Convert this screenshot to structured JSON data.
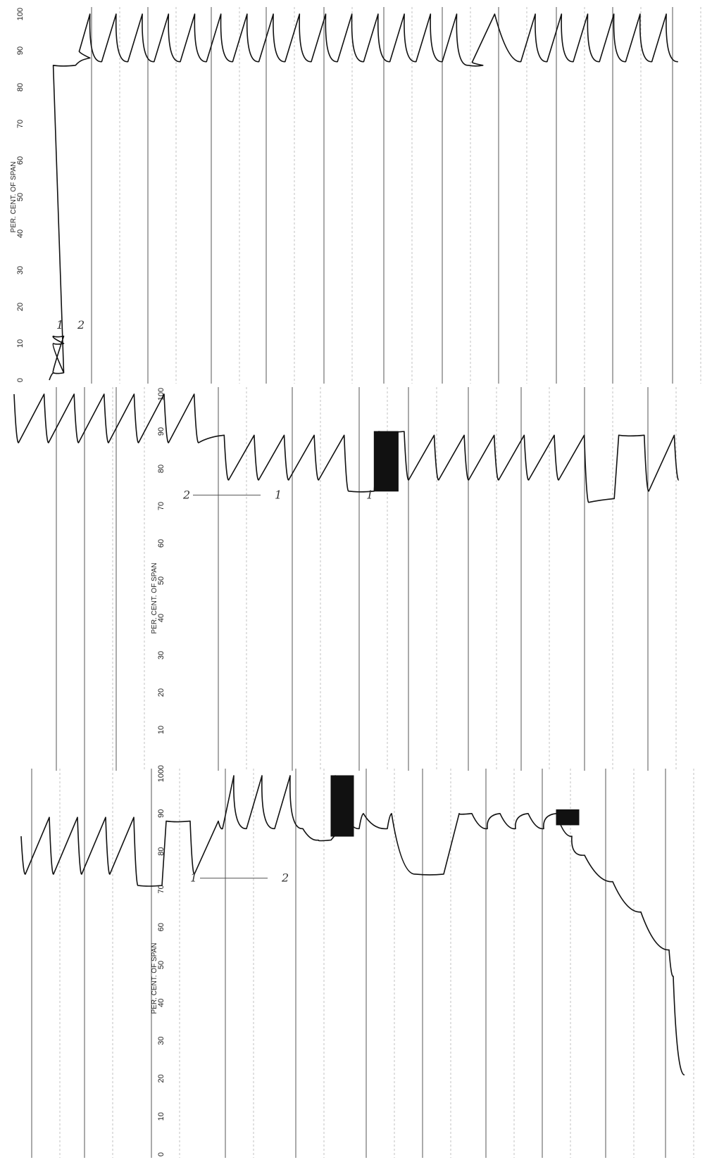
{
  "chart_data": [
    {
      "type": "line",
      "panel": "top strip",
      "axis_title": "PER. CENT. OF SPAN",
      "ticks": [
        "0",
        "10",
        "20",
        "30",
        "40",
        "50",
        "60",
        "70",
        "80",
        "90",
        "100"
      ],
      "ylim": [
        0,
        100
      ],
      "grid": true,
      "annotations": [
        "1",
        "2"
      ],
      "series": [
        {
          "points": [
            [
              0,
              0
            ],
            [
              0,
              2
            ],
            [
              0,
              2
            ],
            [
              0,
              10
            ],
            [
              0,
              10
            ],
            [
              0,
              12
            ],
            [
              0,
              12
            ],
            [
              0,
              2
            ],
            [
              0,
              2
            ],
            [
              0,
              86
            ],
            [
              1,
              86
            ],
            [
              1,
              87
            ],
            [
              1,
              88
            ],
            [
              1,
              90
            ],
            [
              1,
              100
            ],
            [
              2,
              87
            ],
            [
              2,
              100
            ],
            [
              3,
              87
            ],
            [
              3,
              100
            ],
            [
              4,
              87
            ],
            [
              4,
              100
            ],
            [
              5,
              87
            ],
            [
              5,
              100
            ],
            [
              6,
              87
            ],
            [
              6,
              100
            ],
            [
              7,
              87
            ],
            [
              7,
              100
            ],
            [
              8,
              87
            ],
            [
              8,
              100
            ],
            [
              9,
              87
            ],
            [
              9,
              100
            ],
            [
              10,
              87
            ],
            [
              10,
              100
            ],
            [
              11,
              87
            ],
            [
              11,
              100
            ],
            [
              12,
              87
            ],
            [
              12,
              100
            ],
            [
              13,
              87
            ],
            [
              13,
              100
            ],
            [
              14,
              87
            ],
            [
              14,
              100
            ],
            [
              15,
              87
            ],
            [
              15,
              100
            ],
            [
              16,
              86
            ],
            [
              16,
              86
            ],
            [
              16,
              87
            ],
            [
              17,
              100
            ],
            [
              18,
              87
            ],
            [
              18,
              100
            ],
            [
              19,
              87
            ],
            [
              19,
              100
            ],
            [
              20,
              87
            ],
            [
              20,
              100
            ],
            [
              21,
              87
            ],
            [
              21,
              100
            ],
            [
              22,
              87
            ],
            [
              22,
              100
            ],
            [
              23,
              87
            ],
            [
              23,
              100
            ],
            [
              24,
              87
            ]
          ]
        }
      ]
    },
    {
      "type": "line",
      "panel": "middle strip",
      "axis_title": "PER. CENT. OF SPAN",
      "ticks": [
        "0",
        "10",
        "20",
        "30",
        "40",
        "50",
        "60",
        "70",
        "80",
        "90",
        "100"
      ],
      "ylim": [
        0,
        100
      ],
      "grid": true,
      "annotations": [
        "2",
        "1",
        "1"
      ],
      "series": [
        {
          "points": [
            [
              0,
              100
            ],
            [
              0,
              87
            ],
            [
              1,
              100
            ],
            [
              1,
              87
            ],
            [
              2,
              100
            ],
            [
              2,
              87
            ],
            [
              3,
              100
            ],
            [
              3,
              87
            ],
            [
              4,
              100
            ],
            [
              4,
              87
            ],
            [
              5,
              100
            ],
            [
              5,
              87
            ],
            [
              6,
              100
            ],
            [
              6,
              87
            ],
            [
              7,
              89
            ],
            [
              7,
              77
            ],
            [
              8,
              89
            ],
            [
              8,
              77
            ],
            [
              9,
              89
            ],
            [
              9,
              77
            ],
            [
              10,
              89
            ],
            [
              10,
              77
            ],
            [
              11,
              89
            ],
            [
              11,
              74
            ],
            [
              12,
              74
            ],
            [
              12,
              90
            ],
            [
              13,
              90
            ],
            [
              13,
              77
            ],
            [
              14,
              89
            ],
            [
              14,
              77
            ],
            [
              15,
              89
            ],
            [
              15,
              77
            ],
            [
              16,
              89
            ],
            [
              16,
              77
            ],
            [
              17,
              89
            ],
            [
              17,
              77
            ],
            [
              18,
              89
            ],
            [
              18,
              77
            ],
            [
              19,
              89
            ],
            [
              19,
              71
            ],
            [
              20,
              72
            ],
            [
              20,
              89
            ],
            [
              21,
              89
            ],
            [
              21,
              74
            ],
            [
              22,
              89
            ],
            [
              22,
              77
            ]
          ]
        }
      ],
      "dense_oscillation": {
        "x": 12,
        "y_min": 74,
        "y_max": 90
      }
    },
    {
      "type": "line",
      "panel": "bottom strip",
      "axis_title": "PER. CENT. OF SPAN",
      "ticks": [
        "0",
        "10",
        "20",
        "30",
        "40",
        "50",
        "60",
        "70",
        "80",
        "90",
        "100"
      ],
      "ylim": [
        0,
        100
      ],
      "grid": true,
      "annotations": [
        "1",
        "2"
      ],
      "series": [
        {
          "points": [
            [
              0,
              84
            ],
            [
              0,
              74
            ],
            [
              1,
              89
            ],
            [
              1,
              74
            ],
            [
              2,
              89
            ],
            [
              2,
              74
            ],
            [
              3,
              89
            ],
            [
              3,
              74
            ],
            [
              4,
              89
            ],
            [
              4,
              71
            ],
            [
              5,
              71
            ],
            [
              5,
              88
            ],
            [
              6,
              88
            ],
            [
              6,
              74
            ],
            [
              7,
              88
            ],
            [
              7,
              86
            ],
            [
              7,
              100
            ],
            [
              8,
              86
            ],
            [
              8,
              100
            ],
            [
              9,
              86
            ],
            [
              9,
              100
            ],
            [
              10,
              86
            ],
            [
              10,
              83
            ],
            [
              11,
              83
            ],
            [
              11,
              86
            ],
            [
              11,
              100
            ],
            [
              12,
              86
            ],
            [
              12,
              90
            ],
            [
              13,
              86
            ],
            [
              13,
              90
            ],
            [
              14,
              74
            ],
            [
              15,
              74
            ],
            [
              15,
              90
            ],
            [
              16,
              90
            ],
            [
              16,
              86
            ],
            [
              17,
              90
            ],
            [
              17,
              86
            ],
            [
              18,
              90
            ],
            [
              18,
              86
            ],
            [
              19,
              90
            ],
            [
              19,
              84
            ],
            [
              20,
              79
            ],
            [
              21,
              72
            ],
            [
              22,
              64
            ],
            [
              23,
              54
            ],
            [
              23,
              47
            ],
            [
              23,
              21
            ]
          ]
        }
      ],
      "dense_oscillation": [
        {
          "x": 11,
          "y_min": 84,
          "y_max": 100
        },
        {
          "x": 19,
          "y_min": 87,
          "y_max": 91
        }
      ]
    }
  ]
}
